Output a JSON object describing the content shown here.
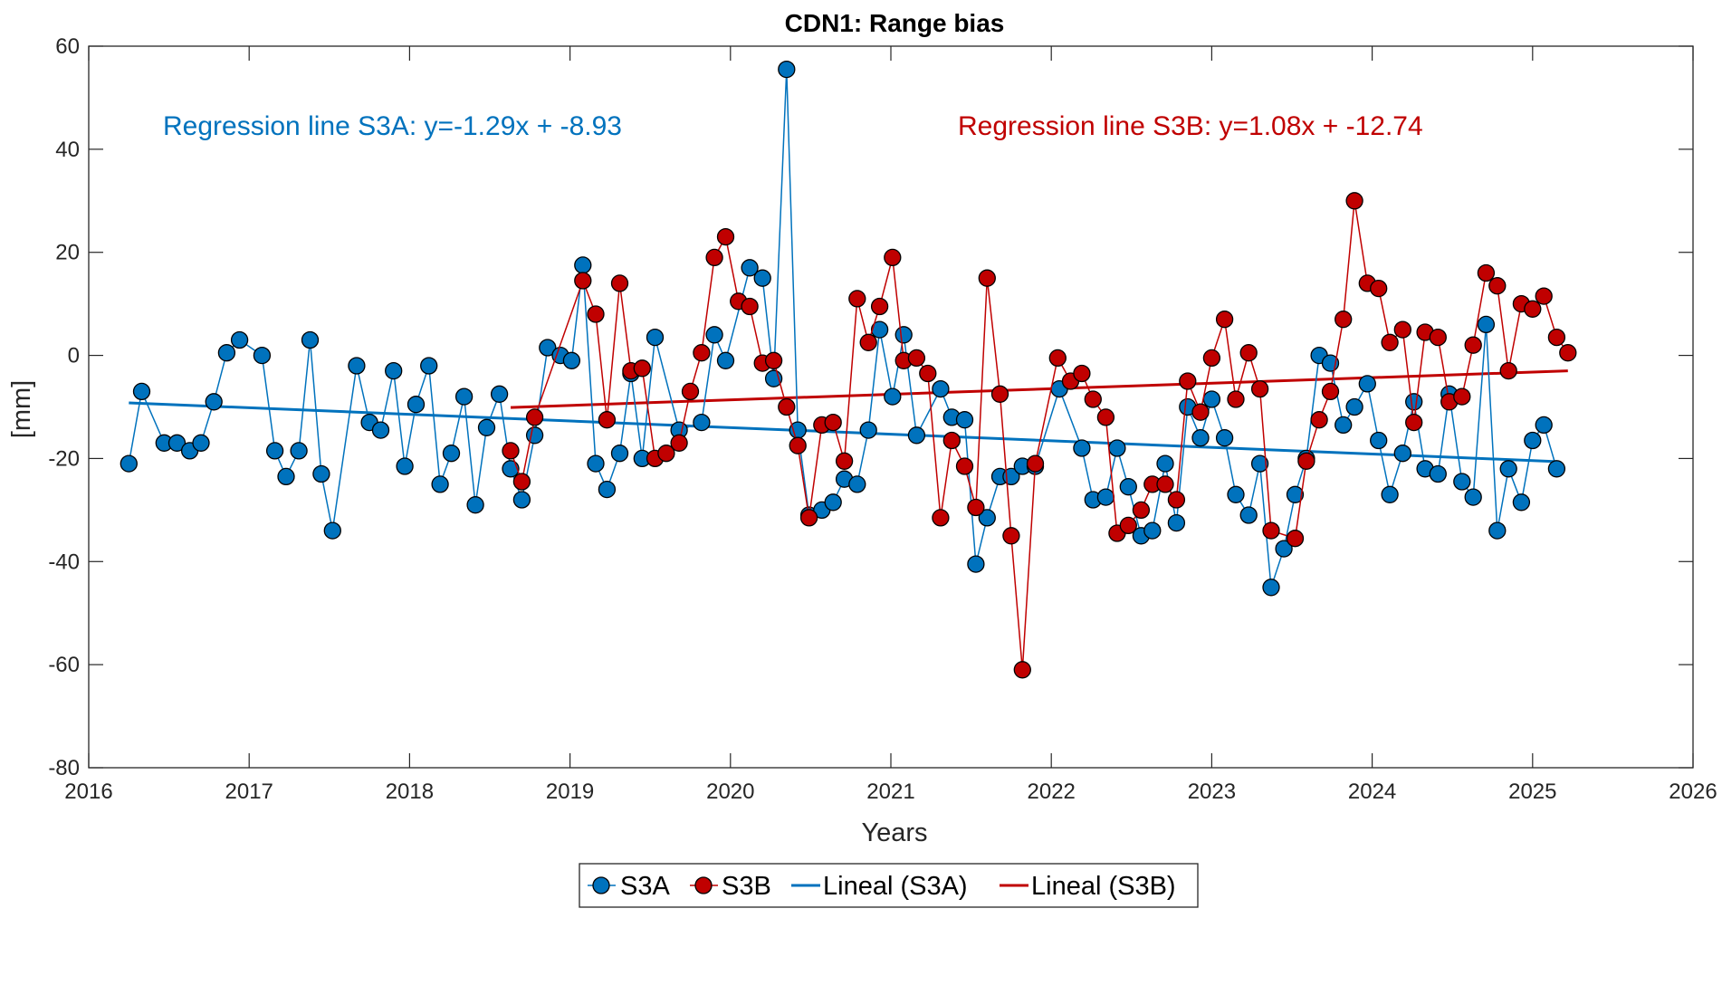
{
  "chart_data": {
    "type": "line",
    "title": "CDN1: Range bias",
    "xlabel": "Years",
    "ylabel": "[mm]",
    "xlim": [
      2016,
      2026
    ],
    "ylim": [
      -80,
      60
    ],
    "xticks": [
      2016,
      2017,
      2018,
      2019,
      2020,
      2021,
      2022,
      2023,
      2024,
      2025,
      2026
    ],
    "yticks": [
      60,
      40,
      20,
      0,
      -20,
      -40,
      -60,
      -80
    ],
    "grid": false,
    "legend_position": "bottom-center",
    "colors": {
      "s3a": "#0072BD",
      "s3b": "#C00000"
    },
    "annotations": [
      {
        "text": "Regression line S3A: y=-1.29x + -8.93",
        "series": "S3A"
      },
      {
        "text": "Regression line S3B: y=1.08x + -12.74",
        "series": "S3B"
      }
    ],
    "series": [
      {
        "name": "S3A",
        "points": [
          [
            2016.25,
            -21
          ],
          [
            2016.33,
            -7
          ],
          [
            2016.47,
            -17
          ],
          [
            2016.55,
            -17
          ],
          [
            2016.63,
            -18.5
          ],
          [
            2016.7,
            -17
          ],
          [
            2016.78,
            -9
          ],
          [
            2016.86,
            0.5
          ],
          [
            2016.94,
            3
          ],
          [
            2017.08,
            0
          ],
          [
            2017.16,
            -18.5
          ],
          [
            2017.23,
            -23.5
          ],
          [
            2017.31,
            -18.5
          ],
          [
            2017.38,
            3
          ],
          [
            2017.45,
            -23
          ],
          [
            2017.52,
            -34
          ],
          [
            2017.67,
            -2
          ],
          [
            2017.75,
            -13
          ],
          [
            2017.82,
            -14.5
          ],
          [
            2017.9,
            -3
          ],
          [
            2017.97,
            -21.5
          ],
          [
            2018.04,
            -9.5
          ],
          [
            2018.12,
            -2
          ],
          [
            2018.19,
            -25
          ],
          [
            2018.26,
            -19
          ],
          [
            2018.34,
            -8
          ],
          [
            2018.41,
            -29
          ],
          [
            2018.48,
            -14
          ],
          [
            2018.56,
            -7.5
          ],
          [
            2018.63,
            -22
          ],
          [
            2018.7,
            -28
          ],
          [
            2018.78,
            -15.5
          ],
          [
            2018.86,
            1.5
          ],
          [
            2018.94,
            0
          ],
          [
            2019.01,
            -1
          ],
          [
            2019.08,
            17.5
          ],
          [
            2019.16,
            -21
          ],
          [
            2019.23,
            -26
          ],
          [
            2019.31,
            -19
          ],
          [
            2019.38,
            -3.5
          ],
          [
            2019.45,
            -20
          ],
          [
            2019.53,
            3.5
          ],
          [
            2019.68,
            -14.5
          ],
          [
            2019.82,
            -13
          ],
          [
            2019.9,
            4
          ],
          [
            2019.97,
            -1
          ],
          [
            2020.12,
            17
          ],
          [
            2020.2,
            15
          ],
          [
            2020.27,
            -4.5
          ],
          [
            2020.35,
            55.5
          ],
          [
            2020.42,
            -14.5
          ],
          [
            2020.49,
            -31
          ],
          [
            2020.57,
            -30
          ],
          [
            2020.64,
            -28.5
          ],
          [
            2020.71,
            -24
          ],
          [
            2020.79,
            -25
          ],
          [
            2020.86,
            -14.5
          ],
          [
            2020.93,
            5
          ],
          [
            2021.01,
            -8
          ],
          [
            2021.08,
            4
          ],
          [
            2021.16,
            -15.5
          ],
          [
            2021.31,
            -6.5
          ],
          [
            2021.38,
            -12
          ],
          [
            2021.46,
            -12.5
          ],
          [
            2021.53,
            -40.5
          ],
          [
            2021.6,
            -31.5
          ],
          [
            2021.68,
            -23.5
          ],
          [
            2021.75,
            -23.5
          ],
          [
            2021.82,
            -21.5
          ],
          [
            2021.9,
            -21.5
          ],
          [
            2022.05,
            -6.5
          ],
          [
            2022.19,
            -18
          ],
          [
            2022.26,
            -28
          ],
          [
            2022.34,
            -27.5
          ],
          [
            2022.41,
            -18
          ],
          [
            2022.48,
            -25.5
          ],
          [
            2022.56,
            -35
          ],
          [
            2022.63,
            -34
          ],
          [
            2022.71,
            -21
          ],
          [
            2022.78,
            -32.5
          ],
          [
            2022.85,
            -10
          ],
          [
            2022.93,
            -16
          ],
          [
            2023.0,
            -8.5
          ],
          [
            2023.08,
            -16
          ],
          [
            2023.15,
            -27
          ],
          [
            2023.23,
            -31
          ],
          [
            2023.3,
            -21
          ],
          [
            2023.37,
            -45
          ],
          [
            2023.45,
            -37.5
          ],
          [
            2023.52,
            -27
          ],
          [
            2023.59,
            -20
          ],
          [
            2023.67,
            0
          ],
          [
            2023.74,
            -1.5
          ],
          [
            2023.82,
            -13.5
          ],
          [
            2023.89,
            -10
          ],
          [
            2023.97,
            -5.5
          ],
          [
            2024.04,
            -16.5
          ],
          [
            2024.11,
            -27
          ],
          [
            2024.19,
            -19
          ],
          [
            2024.26,
            -9
          ],
          [
            2024.33,
            -22
          ],
          [
            2024.41,
            -23
          ],
          [
            2024.48,
            -7.5
          ],
          [
            2024.56,
            -24.5
          ],
          [
            2024.63,
            -27.5
          ],
          [
            2024.71,
            6
          ],
          [
            2024.78,
            -34
          ],
          [
            2024.85,
            -22
          ],
          [
            2024.93,
            -28.5
          ],
          [
            2025.0,
            -16.5
          ],
          [
            2025.07,
            -13.5
          ],
          [
            2025.15,
            -22
          ]
        ]
      },
      {
        "name": "S3B",
        "points": [
          [
            2018.63,
            -18.5
          ],
          [
            2018.7,
            -24.5
          ],
          [
            2018.78,
            -12
          ],
          [
            2019.08,
            14.5
          ],
          [
            2019.16,
            8
          ],
          [
            2019.23,
            -12.5
          ],
          [
            2019.31,
            14
          ],
          [
            2019.38,
            -3
          ],
          [
            2019.45,
            -2.5
          ],
          [
            2019.53,
            -20
          ],
          [
            2019.6,
            -19
          ],
          [
            2019.68,
            -17
          ],
          [
            2019.75,
            -7
          ],
          [
            2019.82,
            0.5
          ],
          [
            2019.9,
            19
          ],
          [
            2019.97,
            23
          ],
          [
            2020.05,
            10.5
          ],
          [
            2020.12,
            9.5
          ],
          [
            2020.2,
            -1.5
          ],
          [
            2020.27,
            -1
          ],
          [
            2020.35,
            -10
          ],
          [
            2020.42,
            -17.5
          ],
          [
            2020.49,
            -31.5
          ],
          [
            2020.57,
            -13.5
          ],
          [
            2020.64,
            -13
          ],
          [
            2020.71,
            -20.5
          ],
          [
            2020.79,
            11
          ],
          [
            2020.86,
            2.5
          ],
          [
            2020.93,
            9.5
          ],
          [
            2021.01,
            19
          ],
          [
            2021.08,
            -1
          ],
          [
            2021.16,
            -0.5
          ],
          [
            2021.23,
            -3.5
          ],
          [
            2021.31,
            -31.5
          ],
          [
            2021.38,
            -16.5
          ],
          [
            2021.46,
            -21.5
          ],
          [
            2021.53,
            -29.5
          ],
          [
            2021.6,
            15
          ],
          [
            2021.68,
            -7.5
          ],
          [
            2021.75,
            -35
          ],
          [
            2021.82,
            -61
          ],
          [
            2021.9,
            -21
          ],
          [
            2022.04,
            -0.5
          ],
          [
            2022.12,
            -5
          ],
          [
            2022.19,
            -3.5
          ],
          [
            2022.26,
            -8.5
          ],
          [
            2022.34,
            -12
          ],
          [
            2022.41,
            -34.5
          ],
          [
            2022.48,
            -33
          ],
          [
            2022.56,
            -30
          ],
          [
            2022.63,
            -25
          ],
          [
            2022.71,
            -25
          ],
          [
            2022.78,
            -28
          ],
          [
            2022.85,
            -5
          ],
          [
            2022.93,
            -11
          ],
          [
            2023.0,
            -0.5
          ],
          [
            2023.08,
            7
          ],
          [
            2023.15,
            -8.5
          ],
          [
            2023.23,
            0.5
          ],
          [
            2023.3,
            -6.5
          ],
          [
            2023.37,
            -34
          ],
          [
            2023.52,
            -35.5
          ],
          [
            2023.59,
            -20.5
          ],
          [
            2023.67,
            -12.5
          ],
          [
            2023.74,
            -7
          ],
          [
            2023.82,
            7
          ],
          [
            2023.89,
            30
          ],
          [
            2023.97,
            14
          ],
          [
            2024.04,
            13
          ],
          [
            2024.11,
            2.5
          ],
          [
            2024.19,
            5
          ],
          [
            2024.26,
            -13
          ],
          [
            2024.33,
            4.5
          ],
          [
            2024.41,
            3.5
          ],
          [
            2024.48,
            -9
          ],
          [
            2024.56,
            -8
          ],
          [
            2024.63,
            2
          ],
          [
            2024.71,
            16
          ],
          [
            2024.78,
            13.5
          ],
          [
            2024.85,
            -3
          ],
          [
            2024.93,
            10
          ],
          [
            2025.0,
            9
          ],
          [
            2025.07,
            11.5
          ],
          [
            2025.15,
            3.5
          ],
          [
            2025.22,
            0.5
          ]
        ]
      },
      {
        "name": "Lineal (S3A)",
        "kind": "fit",
        "x": [
          2016.25,
          2025.15
        ],
        "y": [
          -9.2,
          -20.6
        ]
      },
      {
        "name": "Lineal (S3B)",
        "kind": "fit",
        "x": [
          2018.63,
          2025.22
        ],
        "y": [
          -10.1,
          -3.0
        ]
      }
    ]
  }
}
